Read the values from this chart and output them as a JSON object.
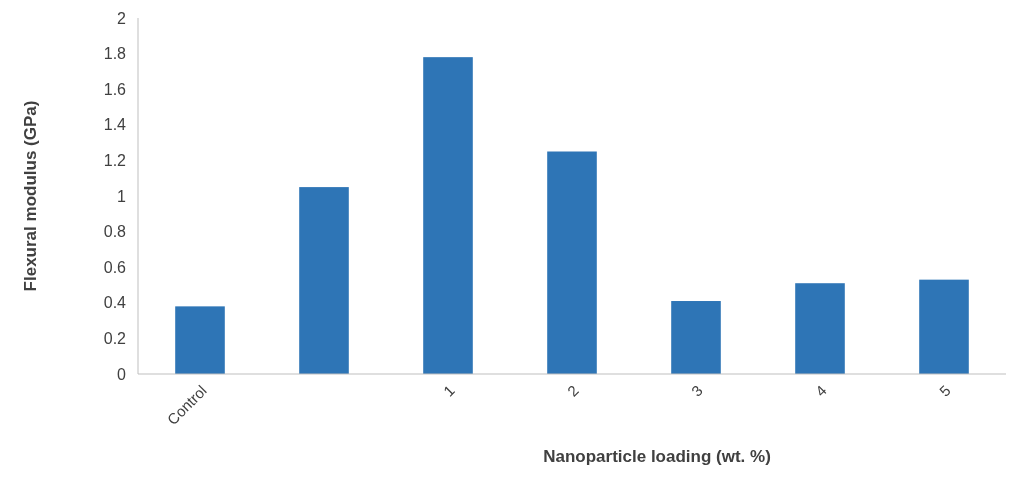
{
  "chart_data": {
    "type": "bar",
    "xlabel": "Nanoparticle loading (wt. %)",
    "ylabel": "Flexural modulus (GPa)",
    "categories": [
      "Control",
      null,
      "1",
      "2",
      "3",
      "4",
      "5"
    ],
    "values": [
      0.38,
      1.05,
      1.78,
      1.25,
      0.41,
      0.51,
      0.53
    ],
    "color": "#2e75b6",
    "ylim": [
      0,
      2
    ],
    "yticks": [
      0,
      0.2,
      0.4,
      0.6,
      0.8,
      1,
      1.2,
      1.4,
      1.6,
      1.8,
      2
    ],
    "grid": false
  }
}
